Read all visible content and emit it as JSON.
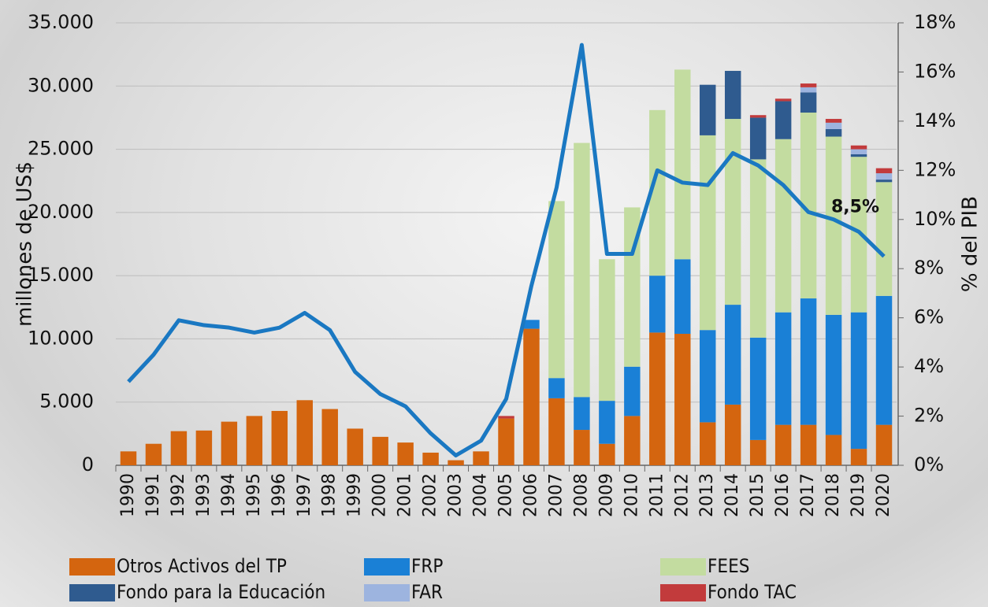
{
  "chart_data": {
    "type": "bar",
    "x_label": "millones de US$",
    "y2_label": "% del PIB",
    "categories": [
      "1990",
      "1991",
      "1992",
      "1993",
      "1994",
      "1995",
      "1996",
      "1997",
      "1998",
      "1999",
      "2000",
      "2001",
      "2002",
      "2003",
      "2004",
      "2005",
      "2006",
      "2007",
      "2008",
      "2009",
      "2010",
      "2011",
      "2012",
      "2013",
      "2014",
      "2015",
      "2016",
      "2017",
      "2018",
      "2019",
      "2020"
    ],
    "series": [
      {
        "name": "Otros Activos del TP",
        "color": "#d4650f",
        "values": [
          1100,
          1700,
          2700,
          2750,
          3450,
          3900,
          4300,
          5150,
          4450,
          2900,
          2250,
          1800,
          1000,
          400,
          1100,
          3700,
          10800,
          5300,
          2800,
          1700,
          3900,
          10500,
          10400,
          3400,
          4800,
          2000,
          3200,
          3200,
          2400,
          1300,
          3200
        ]
      },
      {
        "name": "FRP",
        "color": "#1a80d6",
        "values": [
          0,
          0,
          0,
          0,
          0,
          0,
          0,
          0,
          0,
          0,
          0,
          0,
          0,
          0,
          0,
          0,
          700,
          1600,
          2600,
          3400,
          3900,
          4500,
          5900,
          7300,
          7900,
          8100,
          8900,
          10000,
          9500,
          10800,
          10200
        ]
      },
      {
        "name": "FEES",
        "color": "#c3dca0",
        "values": [
          0,
          0,
          0,
          0,
          0,
          0,
          0,
          0,
          0,
          0,
          0,
          0,
          0,
          0,
          0,
          0,
          0,
          14000,
          20100,
          11200,
          12600,
          13100,
          15000,
          15400,
          14700,
          14100,
          13700,
          14700,
          14100,
          12300,
          9000
        ]
      },
      {
        "name": "Fondo para la Educación",
        "color": "#2f5b8f",
        "values": [
          0,
          0,
          0,
          0,
          0,
          0,
          0,
          0,
          0,
          0,
          0,
          0,
          0,
          0,
          0,
          0,
          0,
          0,
          0,
          0,
          0,
          0,
          0,
          4000,
          3800,
          3300,
          3000,
          1600,
          600,
          200,
          200
        ]
      },
      {
        "name": "FAR",
        "color": "#9db4df",
        "values": [
          0,
          0,
          0,
          0,
          0,
          0,
          0,
          0,
          0,
          0,
          0,
          0,
          0,
          0,
          0,
          0,
          0,
          0,
          0,
          0,
          0,
          0,
          0,
          0,
          0,
          0,
          0,
          400,
          500,
          400,
          500
        ]
      },
      {
        "name": "Fondo TAC",
        "color": "#c23b3c",
        "values": [
          0,
          0,
          0,
          0,
          0,
          0,
          0,
          0,
          0,
          0,
          0,
          0,
          0,
          0,
          0,
          200,
          0,
          0,
          0,
          0,
          0,
          0,
          0,
          0,
          0,
          200,
          200,
          300,
          300,
          300,
          400
        ]
      },
      {
        "name": "% del PIB",
        "type": "line",
        "axis": "y2",
        "color": "#1a78c2",
        "values": [
          3.4,
          4.5,
          5.9,
          5.7,
          5.6,
          5.4,
          5.6,
          6.2,
          5.5,
          3.8,
          2.9,
          2.4,
          1.3,
          0.4,
          1.0,
          2.7,
          7.3,
          11.3,
          17.1,
          8.6,
          8.6,
          12.0,
          11.5,
          11.4,
          12.7,
          12.2,
          11.4,
          10.3,
          10.0,
          9.5,
          8.5
        ],
        "value_labels": [
          null,
          null,
          null,
          null,
          null,
          null,
          null,
          null,
          null,
          null,
          null,
          null,
          null,
          null,
          null,
          null,
          null,
          null,
          null,
          null,
          null,
          null,
          null,
          null,
          null,
          null,
          null,
          null,
          null,
          null,
          "8,5%"
        ]
      }
    ],
    "ylim": [
      0,
      35000
    ],
    "yticks": [
      {
        "value": 0,
        "label": "0"
      },
      {
        "value": 5000,
        "label": "5.000"
      },
      {
        "value": 10000,
        "label": "10.000"
      },
      {
        "value": 15000,
        "label": "15.000"
      },
      {
        "value": 20000,
        "label": "20.000"
      },
      {
        "value": 25000,
        "label": "25.000"
      },
      {
        "value": 30000,
        "label": "30.000"
      },
      {
        "value": 35000,
        "label": "35.000"
      }
    ],
    "y2lim": [
      0,
      18
    ],
    "y2ticks": [
      {
        "value": 0,
        "label": "0%"
      },
      {
        "value": 2,
        "label": "2%"
      },
      {
        "value": 4,
        "label": "4%"
      },
      {
        "value": 6,
        "label": "6%"
      },
      {
        "value": 8,
        "label": "8%"
      },
      {
        "value": 10,
        "label": "10%"
      },
      {
        "value": 12,
        "label": "12%"
      },
      {
        "value": 14,
        "label": "14%"
      },
      {
        "value": 16,
        "label": "16%"
      },
      {
        "value": 18,
        "label": "18%"
      }
    ],
    "grid": true,
    "legend": "bottom"
  }
}
